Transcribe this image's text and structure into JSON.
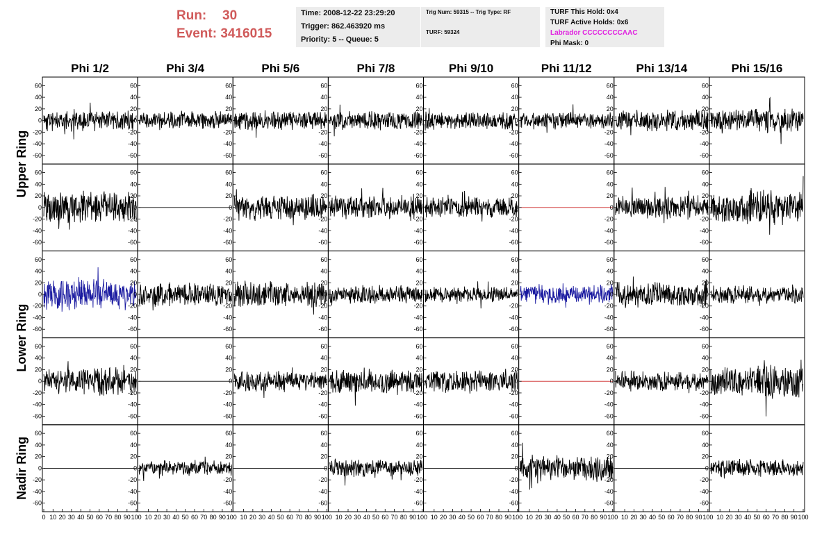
{
  "header": {
    "run_label": "Run:",
    "run_value": "30",
    "event_label": "Event:",
    "event_value": "3416015"
  },
  "info_box_1": {
    "time": "Time: 2008-12-22 23:29:20",
    "trigger": "Trigger: 862.463920 ms",
    "priority": "Priority: 5 -- Queue: 5"
  },
  "info_box_2": {
    "trig": "Trig Num: 59315 -- Trig Type: RF",
    "turf": "TURF: 59324"
  },
  "info_box_3": {
    "this_hold": "TURF This Hold: 0x4",
    "active_holds": "TURF Active Holds: 0x6",
    "labrador": "Labrador CCCCCCCCAAC",
    "phi_mask": "Phi Mask: 0"
  },
  "colors": {
    "title_red": "#d05a5a",
    "trace_black": "#000000",
    "trace_blue": "#1a1aa0",
    "trace_red": "#cc2222",
    "labrador_magenta": "#e020e0"
  },
  "chart_data": {
    "type": "line",
    "columns": [
      "Phi 1/2",
      "Phi 3/4",
      "Phi 5/6",
      "Phi 7/8",
      "Phi 9/10",
      "Phi 11/12",
      "Phi 13/14",
      "Phi 15/16"
    ],
    "row_labels": [
      "Upper Ring",
      "Lower Ring",
      "Nadir Ring"
    ],
    "ylim": [
      -70,
      70
    ],
    "y_ticks": [
      -60,
      -40,
      -20,
      0,
      20,
      40,
      60
    ],
    "xlim": [
      0,
      100
    ],
    "x_ticks": [
      0,
      10,
      20,
      30,
      40,
      50,
      60,
      70,
      80,
      90,
      100
    ],
    "panel_rows": 5,
    "panels": [
      [
        {
          "amp": 14,
          "seed": 11,
          "color": "black"
        },
        {
          "amp": 12,
          "seed": 12,
          "color": "black"
        },
        {
          "amp": 13,
          "seed": 13,
          "color": "black"
        },
        {
          "amp": 12,
          "seed": 14,
          "color": "black"
        },
        {
          "amp": 12,
          "seed": 15,
          "color": "black"
        },
        {
          "amp": 11,
          "seed": 16,
          "color": "black"
        },
        {
          "amp": 14,
          "seed": 17,
          "color": "black"
        },
        {
          "amp": 16,
          "seed": 18,
          "color": "black"
        }
      ],
      [
        {
          "amp": 22,
          "seed": 21,
          "color": "black"
        },
        {
          "amp": 0,
          "seed": 22,
          "color": "black"
        },
        {
          "amp": 17,
          "seed": 23,
          "color": "black"
        },
        {
          "amp": 15,
          "seed": 24,
          "color": "black"
        },
        {
          "amp": 14,
          "seed": 25,
          "color": "black"
        },
        {
          "amp": 0,
          "seed": 26,
          "color": "red"
        },
        {
          "amp": 15,
          "seed": 27,
          "color": "black"
        },
        {
          "amp": 22,
          "seed": 28,
          "color": "black"
        }
      ],
      [
        {
          "amp": 20,
          "seed": 31,
          "color": "blue"
        },
        {
          "amp": 15,
          "seed": 32,
          "color": "black"
        },
        {
          "amp": 17,
          "seed": 33,
          "color": "black"
        },
        {
          "amp": 12,
          "seed": 34,
          "color": "black"
        },
        {
          "amp": 10,
          "seed": 35,
          "color": "black"
        },
        {
          "amp": 13,
          "seed": 36,
          "color": "blue"
        },
        {
          "amp": 17,
          "seed": 37,
          "color": "black"
        },
        {
          "amp": 12,
          "seed": 38,
          "color": "black"
        }
      ],
      [
        {
          "amp": 18,
          "seed": 41,
          "color": "black"
        },
        {
          "amp": 0,
          "seed": 42,
          "color": "black"
        },
        {
          "amp": 13,
          "seed": 43,
          "color": "black"
        },
        {
          "amp": 17,
          "seed": 44,
          "color": "black"
        },
        {
          "amp": 15,
          "seed": 45,
          "color": "black"
        },
        {
          "amp": 0,
          "seed": 46,
          "color": "red"
        },
        {
          "amp": 13,
          "seed": 47,
          "color": "black"
        },
        {
          "amp": 23,
          "seed": 48,
          "color": "black"
        }
      ],
      [
        {
          "amp": 0,
          "seed": 51,
          "color": "black"
        },
        {
          "amp": 10,
          "seed": 52,
          "color": "black"
        },
        {
          "amp": 0,
          "seed": 53,
          "color": "black"
        },
        {
          "amp": 12,
          "seed": 54,
          "color": "black"
        },
        {
          "amp": 0,
          "seed": 55,
          "color": "black"
        },
        {
          "amp": 17,
          "seed": 56,
          "color": "black"
        },
        {
          "amp": 0,
          "seed": 57,
          "color": "black"
        },
        {
          "amp": 12,
          "seed": 58,
          "color": "black"
        }
      ]
    ]
  }
}
